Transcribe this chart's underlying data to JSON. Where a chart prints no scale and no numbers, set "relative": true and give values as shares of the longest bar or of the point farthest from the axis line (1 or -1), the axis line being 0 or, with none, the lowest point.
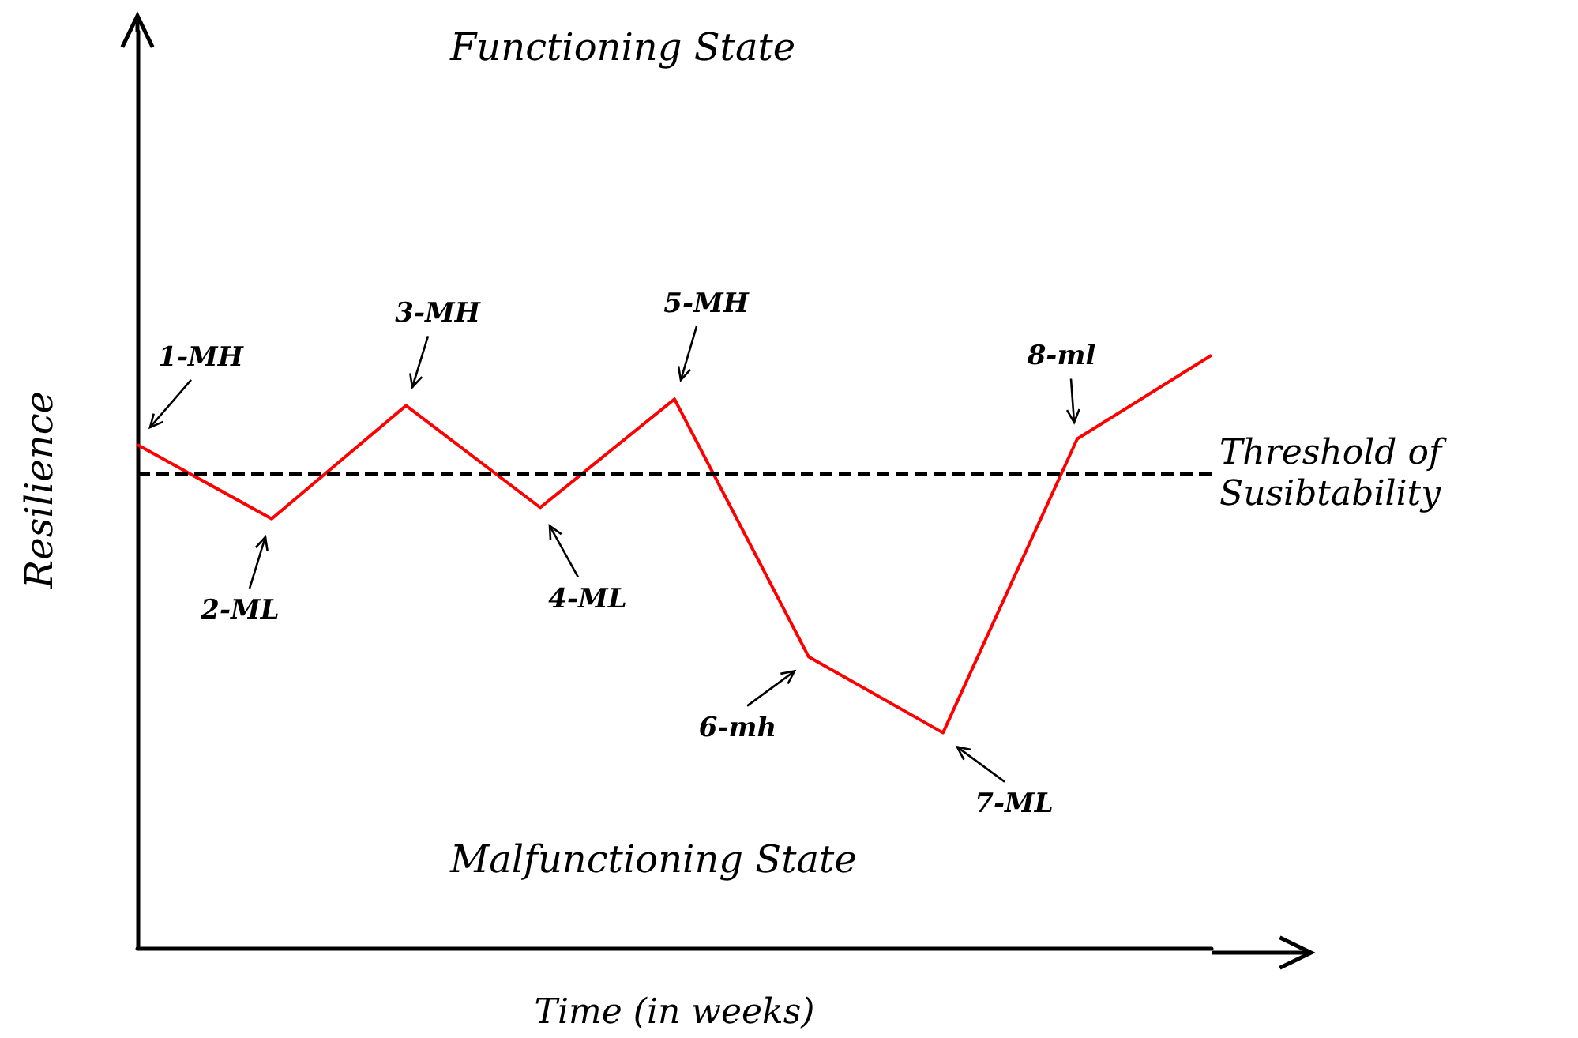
{
  "chart_data": {
    "type": "line",
    "relative": true,
    "xlabel": "Time (in weeks)",
    "ylabel": "Resilience",
    "categories": [
      null,
      null,
      null,
      null,
      null,
      null,
      null,
      null,
      null
    ],
    "series": [
      {
        "color": "#ff0000",
        "values": [
          0.849,
          0.724,
          0.915,
          0.743,
          0.926,
          0.491,
          0.363,
          0.859,
          1
        ]
      }
    ],
    "ref_lines": [
      {
        "axis": "y",
        "value": 0.8,
        "label": "Threshold of Susibtability",
        "color": "#000000",
        "line_style": "dashed"
      }
    ],
    "annotations": [
      "Functioning State",
      "Malfunctioning State",
      "1-MH",
      "2-ML",
      "3-MH",
      "4-ML",
      "5-MH",
      "6-mh",
      "7-ML",
      "8-ml"
    ],
    "marker": "none",
    "line_style": "solid"
  }
}
